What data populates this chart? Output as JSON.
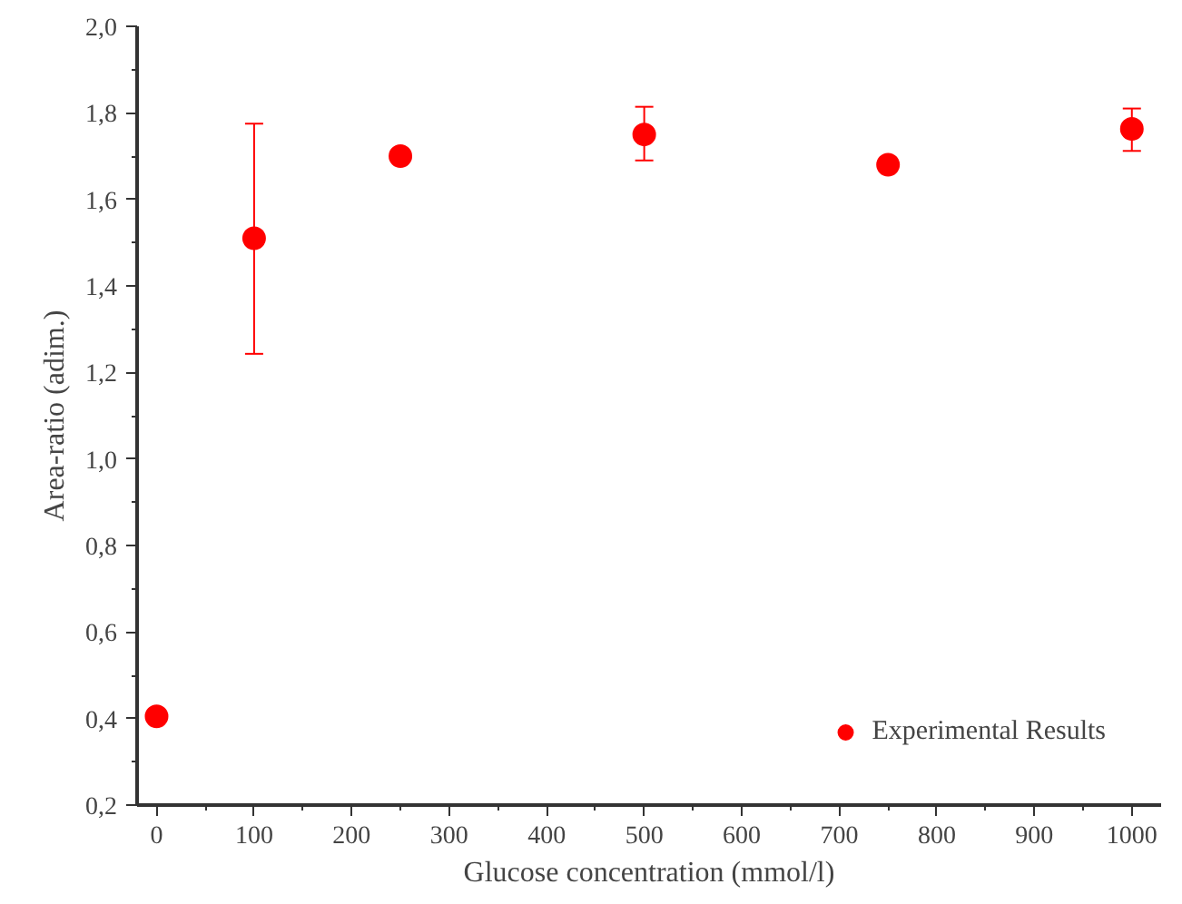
{
  "chart_data": {
    "type": "scatter",
    "xlabel": "Glucose concentration (mmol/l)",
    "ylabel": "Area-ratio (adim.)",
    "x": [
      0,
      100,
      250,
      500,
      750,
      1000
    ],
    "series": [
      {
        "name": "Experimental Results",
        "color": "#ff0000",
        "values": [
          0.405,
          1.51,
          1.7,
          1.75,
          1.68,
          1.763
        ],
        "errors": [
          null,
          [
            1.243,
            1.775
          ],
          null,
          [
            1.69,
            1.814
          ],
          null,
          [
            1.712,
            1.81
          ]
        ]
      }
    ],
    "xlim": [
      -20,
      1030
    ],
    "ylim": [
      0.2,
      2.0
    ],
    "xticks": [
      0,
      100,
      200,
      300,
      400,
      500,
      600,
      700,
      800,
      900,
      1000
    ],
    "yticks": [
      {
        "value": 0.2,
        "label": "0,2"
      },
      {
        "value": 0.4,
        "label": "0,4"
      },
      {
        "value": 0.6,
        "label": "0,6"
      },
      {
        "value": 0.8,
        "label": "0,8"
      },
      {
        "value": 1.0,
        "label": "1,0"
      },
      {
        "value": 1.2,
        "label": "1,2"
      },
      {
        "value": 1.4,
        "label": "1,4"
      },
      {
        "value": 1.6,
        "label": "1,6"
      },
      {
        "value": 1.8,
        "label": "1,8"
      },
      {
        "value": 2.0,
        "label": "2,0"
      }
    ],
    "marker": "circle",
    "grid": false,
    "legend": "bottom right"
  }
}
